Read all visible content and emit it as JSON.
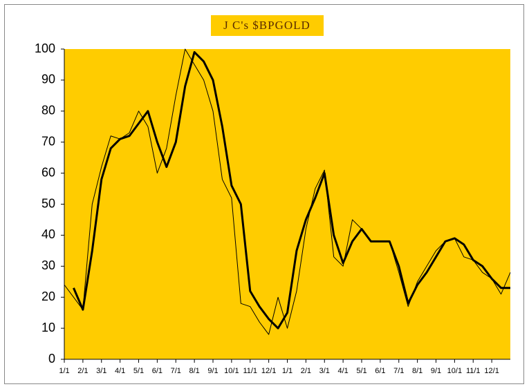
{
  "chart_data": {
    "type": "line",
    "title": "J C's $BPGOLD",
    "xlim": [
      0,
      24
    ],
    "ylim": [
      0,
      100
    ],
    "yticks": [
      0,
      10,
      20,
      30,
      40,
      50,
      60,
      70,
      80,
      90,
      100
    ],
    "xticks": [
      {
        "value": 0,
        "label": "1/1"
      },
      {
        "value": 1,
        "label": "2/1"
      },
      {
        "value": 2,
        "label": "3/1"
      },
      {
        "value": 3,
        "label": "4/1"
      },
      {
        "value": 4,
        "label": "5/1"
      },
      {
        "value": 5,
        "label": "6/1"
      },
      {
        "value": 6,
        "label": "7/1"
      },
      {
        "value": 7,
        "label": "8/1"
      },
      {
        "value": 8,
        "label": "9/1"
      },
      {
        "value": 9,
        "label": "10/1"
      },
      {
        "value": 10,
        "label": "11/1"
      },
      {
        "value": 11,
        "label": "12/1"
      },
      {
        "value": 12,
        "label": "1/1"
      },
      {
        "value": 13,
        "label": "2/1"
      },
      {
        "value": 14,
        "label": "3/1"
      },
      {
        "value": 15,
        "label": "4/1"
      },
      {
        "value": 16,
        "label": "5/1"
      },
      {
        "value": 17,
        "label": "6/1"
      },
      {
        "value": 18,
        "label": "7/1"
      },
      {
        "value": 19,
        "label": "8/1"
      },
      {
        "value": 20,
        "label": "9/1"
      },
      {
        "value": 21,
        "label": "10/1"
      },
      {
        "value": 22,
        "label": "11/1"
      },
      {
        "value": 23,
        "label": "12/1"
      }
    ],
    "plot_color": "#ffcc00",
    "x": [
      0,
      0.5,
      1,
      1.5,
      2,
      2.5,
      3,
      3.5,
      4,
      4.5,
      5,
      5.5,
      6,
      6.5,
      7,
      7.5,
      8,
      8.5,
      9,
      9.5,
      10,
      10.5,
      11,
      11.5,
      12,
      12.5,
      13,
      13.5,
      14,
      14.5,
      15,
      15.5,
      16,
      16.5,
      17,
      17.5,
      18,
      18.5,
      19,
      19.5,
      20,
      20.5,
      21,
      21.5,
      22,
      22.5,
      23,
      23.5,
      24
    ],
    "series": [
      {
        "color": "#000000",
        "width": 1,
        "values": [
          24,
          20,
          16,
          50,
          62,
          72,
          71,
          73,
          80,
          75,
          60,
          68,
          85,
          100,
          95,
          90,
          80,
          58,
          52,
          18,
          17,
          12,
          8,
          20,
          10,
          22,
          42,
          55,
          61,
          33,
          30,
          45,
          42,
          38,
          38,
          38,
          28,
          17,
          25,
          30,
          35,
          38,
          39,
          33,
          32,
          28,
          26,
          21,
          28
        ]
      },
      {
        "color": "#000000",
        "width": 3,
        "values": [
          null,
          23,
          16,
          35,
          58,
          68,
          71,
          72,
          76,
          80,
          70,
          62,
          70,
          88,
          99,
          96,
          90,
          75,
          56,
          50,
          22,
          17,
          13,
          10,
          15,
          35,
          45,
          52,
          60,
          40,
          31,
          38,
          42,
          38,
          38,
          38,
          30,
          18,
          24,
          28,
          33,
          38,
          39,
          37,
          32,
          30,
          26,
          23,
          23
        ]
      }
    ]
  }
}
